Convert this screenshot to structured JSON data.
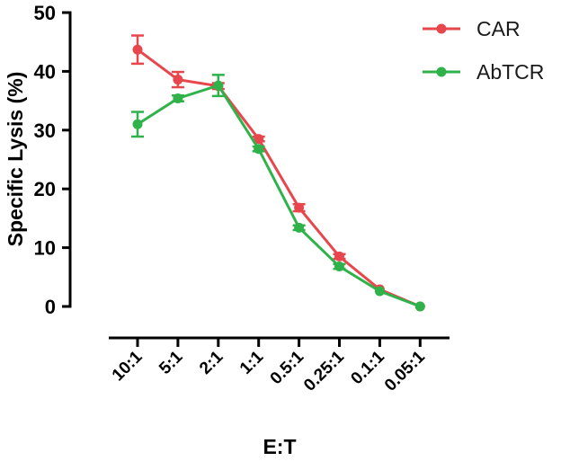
{
  "chart_data": {
    "type": "line",
    "xlabel": "E:T",
    "ylabel": "Specific Lysis (%)",
    "categories": [
      "10:1",
      "5:1",
      "2:1",
      "1:1",
      "0.5:1",
      "0.25:1",
      "0.1:1",
      "0.05:1"
    ],
    "ylim": [
      0,
      50
    ],
    "yticks": [
      "0",
      "10",
      "20",
      "30",
      "40",
      "50"
    ],
    "grid": false,
    "legend_position": "top-right",
    "series": [
      {
        "name": "CAR",
        "color": "#e8464d",
        "values": [
          43.7,
          38.6,
          37.5,
          28.5,
          16.8,
          8.5,
          2.9,
          0.0
        ],
        "errors": [
          2.4,
          1.3,
          0.5,
          0.4,
          0.6,
          0.4,
          0.3,
          0.1
        ]
      },
      {
        "name": "AbTCR",
        "color": "#2fb24a",
        "values": [
          31.0,
          35.4,
          37.6,
          26.8,
          13.4,
          6.8,
          2.6,
          0.0
        ],
        "errors": [
          2.1,
          0.5,
          1.8,
          0.4,
          0.4,
          0.4,
          0.3,
          0.1
        ]
      }
    ]
  }
}
